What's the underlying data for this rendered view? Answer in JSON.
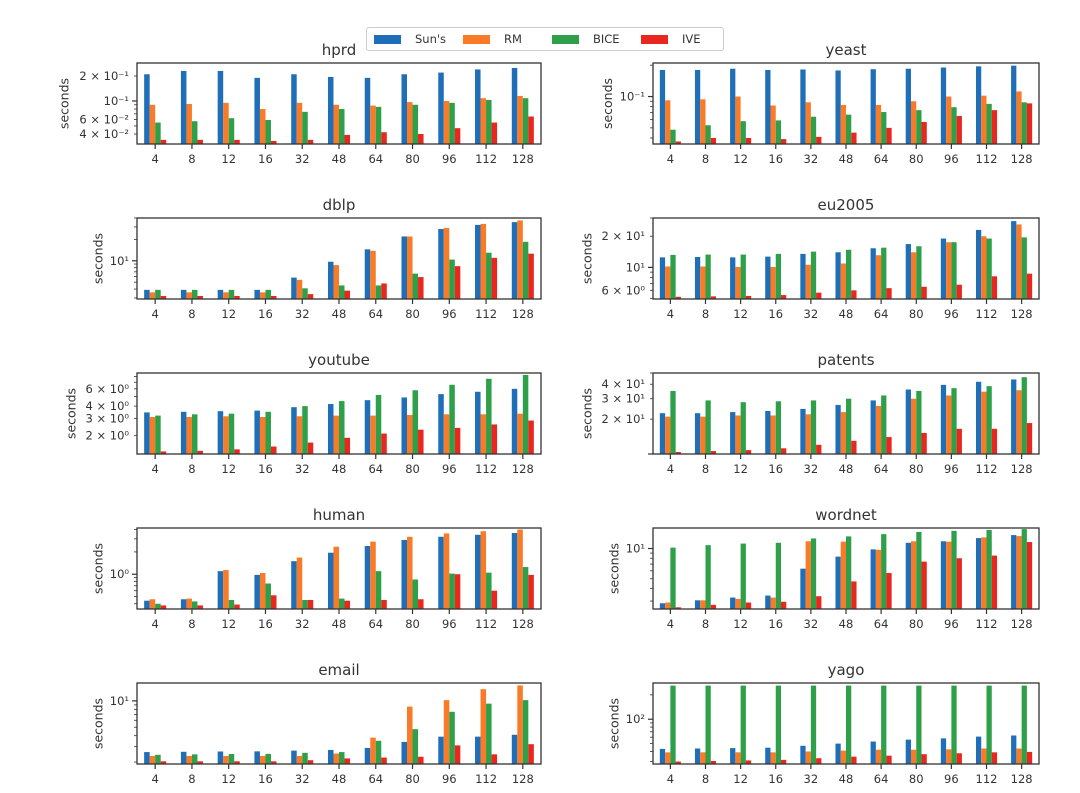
{
  "legend": [
    {
      "label": "Sun's",
      "color": "#1f6fb8"
    },
    {
      "label": "RM",
      "color": "#f97b28"
    },
    {
      "label": "BICE",
      "color": "#2ea04a"
    },
    {
      "label": "IVE",
      "color": "#e8281e"
    }
  ],
  "chart_data": [
    {
      "type": "bar",
      "title": "hprd",
      "xlabel": "",
      "ylabel": "seconds",
      "yscale": "log",
      "categories": [
        "4",
        "8",
        "12",
        "16",
        "32",
        "48",
        "64",
        "80",
        "96",
        "112",
        "128"
      ],
      "ylim": [
        0.0303,
        0.287
      ],
      "yticks": [
        {
          "v": 0.2,
          "label": "2 × 10⁻¹"
        },
        {
          "v": 0.1,
          "label": "10⁻¹"
        },
        {
          "v": 0.06,
          "label": "6 × 10⁻²"
        },
        {
          "v": 0.04,
          "label": "4 × 10⁻²"
        }
      ],
      "series": [
        {
          "name": "Sun's",
          "values": [
            0.21,
            0.23,
            0.23,
            0.19,
            0.21,
            0.195,
            0.19,
            0.21,
            0.22,
            0.24,
            0.25
          ]
        },
        {
          "name": "RM",
          "values": [
            0.09,
            0.092,
            0.095,
            0.08,
            0.095,
            0.09,
            0.088,
            0.097,
            0.1,
            0.108,
            0.115
          ]
        },
        {
          "name": "BICE",
          "values": [
            0.055,
            0.057,
            0.062,
            0.059,
            0.074,
            0.08,
            0.085,
            0.09,
            0.095,
            0.103,
            0.108
          ]
        },
        {
          "name": "IVE",
          "values": [
            0.034,
            0.034,
            0.034,
            0.033,
            0.034,
            0.039,
            0.042,
            0.04,
            0.047,
            0.055,
            0.065
          ]
        }
      ]
    },
    {
      "type": "bar",
      "title": "yeast",
      "xlabel": "",
      "ylabel": "seconds",
      "yscale": "log",
      "categories": [
        "4",
        "8",
        "12",
        "16",
        "32",
        "48",
        "64",
        "80",
        "96",
        "112",
        "128"
      ],
      "ylim": [
        0.035,
        0.21
      ],
      "yticks": [
        {
          "v": 0.1,
          "label": "10⁻¹"
        }
      ],
      "series": [
        {
          "name": "Sun's",
          "values": [
            0.18,
            0.18,
            0.185,
            0.18,
            0.182,
            0.178,
            0.183,
            0.185,
            0.19,
            0.195,
            0.198
          ]
        },
        {
          "name": "RM",
          "values": [
            0.092,
            0.094,
            0.1,
            0.082,
            0.088,
            0.083,
            0.083,
            0.09,
            0.1,
            0.102,
            0.112
          ]
        },
        {
          "name": "BICE",
          "values": [
            0.048,
            0.053,
            0.058,
            0.059,
            0.064,
            0.067,
            0.071,
            0.074,
            0.079,
            0.085,
            0.088
          ]
        },
        {
          "name": "IVE",
          "values": [
            0.037,
            0.04,
            0.04,
            0.039,
            0.041,
            0.045,
            0.05,
            0.057,
            0.065,
            0.074,
            0.086
          ]
        }
      ]
    },
    {
      "type": "bar",
      "title": "dblp",
      "xlabel": "",
      "ylabel": "seconds",
      "yscale": "log",
      "categories": [
        "4",
        "8",
        "12",
        "16",
        "32",
        "48",
        "64",
        "80",
        "96",
        "112",
        "128"
      ],
      "ylim": [
        2.9,
        40
      ],
      "yticks": [
        {
          "v": 10,
          "label": "10¹"
        }
      ],
      "series": [
        {
          "name": "Sun's",
          "values": [
            3.9,
            3.9,
            3.9,
            3.9,
            5.8,
            9.7,
            14.5,
            22,
            28,
            32,
            35
          ]
        },
        {
          "name": "RM",
          "values": [
            3.6,
            3.6,
            3.6,
            3.6,
            5.4,
            8.7,
            13.8,
            22,
            29,
            33,
            37
          ]
        },
        {
          "name": "BICE",
          "values": [
            3.9,
            3.9,
            3.9,
            3.9,
            4.1,
            4.5,
            4.5,
            6.6,
            10.4,
            13,
            18.5
          ]
        },
        {
          "name": "IVE",
          "values": [
            3.2,
            3.2,
            3.2,
            3.2,
            3.4,
            3.8,
            4.8,
            5.9,
            8.4,
            11,
            12.6
          ]
        }
      ]
    },
    {
      "type": "bar",
      "title": "eu2005",
      "xlabel": "",
      "ylabel": "seconds",
      "yscale": "log",
      "categories": [
        "4",
        "8",
        "12",
        "16",
        "32",
        "48",
        "64",
        "80",
        "96",
        "112",
        "128"
      ],
      "ylim": [
        4.95,
        30
      ],
      "yticks": [
        {
          "v": 20,
          "label": "2 × 10¹"
        },
        {
          "v": 10,
          "label": "10¹"
        },
        {
          "v": 6,
          "label": "6 × 10⁰"
        }
      ],
      "series": [
        {
          "name": "Sun's",
          "values": [
            12.5,
            12.6,
            12.5,
            12.7,
            13.5,
            14,
            15.3,
            16.8,
            19,
            23,
            28
          ]
        },
        {
          "name": "RM",
          "values": [
            10.2,
            10.2,
            10.1,
            10.1,
            10.6,
            10.9,
            13.1,
            14,
            17.5,
            20,
            26
          ]
        },
        {
          "name": "BICE",
          "values": [
            13.2,
            13.3,
            13.3,
            13.5,
            14.2,
            14.8,
            15.5,
            16,
            17.5,
            19,
            19.5
          ]
        },
        {
          "name": "IVE",
          "values": [
            5.2,
            5.25,
            5.3,
            5.4,
            5.7,
            6,
            6.3,
            6.5,
            6.8,
            8.2,
            8.7
          ]
        }
      ]
    },
    {
      "type": "bar",
      "title": "youtube",
      "xlabel": "",
      "ylabel": "seconds",
      "yscale": "log",
      "categories": [
        "4",
        "8",
        "12",
        "16",
        "32",
        "48",
        "64",
        "80",
        "96",
        "112",
        "128"
      ],
      "ylim": [
        1.3,
        8.7
      ],
      "yticks": [
        {
          "v": 6,
          "label": "6 × 10⁰"
        },
        {
          "v": 4,
          "label": "4 × 10⁰"
        },
        {
          "v": 3,
          "label": "3 × 10⁰"
        },
        {
          "v": 2,
          "label": "2 × 10⁰"
        }
      ],
      "series": [
        {
          "name": "Sun's",
          "values": [
            3.45,
            3.5,
            3.55,
            3.6,
            3.9,
            4.2,
            4.6,
            4.9,
            5.3,
            5.6,
            6.0
          ]
        },
        {
          "name": "RM",
          "values": [
            3.1,
            3.1,
            3.15,
            3.1,
            3.15,
            3.2,
            3.2,
            3.25,
            3.3,
            3.3,
            3.35
          ]
        },
        {
          "name": "BICE",
          "values": [
            3.2,
            3.3,
            3.35,
            3.5,
            4.0,
            4.5,
            5.2,
            5.8,
            6.6,
            7.6,
            8.3
          ]
        },
        {
          "name": "IVE",
          "values": [
            1.38,
            1.4,
            1.45,
            1.55,
            1.7,
            1.9,
            2.1,
            2.3,
            2.4,
            2.6,
            2.85
          ]
        }
      ]
    },
    {
      "type": "bar",
      "title": "patents",
      "xlabel": "",
      "ylabel": "seconds",
      "yscale": "log",
      "categories": [
        "4",
        "8",
        "12",
        "16",
        "32",
        "48",
        "64",
        "80",
        "96",
        "112",
        "128"
      ],
      "ylim": [
        10,
        50
      ],
      "yticks": [
        {
          "v": 40,
          "label": "4 × 10¹"
        },
        {
          "v": 30,
          "label": "3 × 10¹"
        },
        {
          "v": 20,
          "label": "2 × 10¹"
        }
      ],
      "series": [
        {
          "name": "Sun's",
          "values": [
            22.5,
            22.5,
            23,
            23.5,
            24.5,
            26.5,
            29,
            36,
            39.5,
            42,
            44
          ]
        },
        {
          "name": "RM",
          "values": [
            21,
            21,
            21.5,
            21.5,
            22,
            23,
            26,
            30,
            32,
            34.5,
            35.5
          ]
        },
        {
          "name": "BICE",
          "values": [
            35,
            29,
            28,
            28.5,
            29,
            30,
            32,
            35,
            37,
            38.5,
            46
          ]
        },
        {
          "name": "IVE",
          "values": [
            10.4,
            10.6,
            10.8,
            11.2,
            12,
            13,
            14,
            15.2,
            16.5,
            16.5,
            18.5
          ]
        }
      ]
    },
    {
      "type": "bar",
      "title": "human",
      "xlabel": "",
      "ylabel": "seconds",
      "yscale": "log",
      "categories": [
        "4",
        "8",
        "12",
        "16",
        "32",
        "48",
        "64",
        "80",
        "96",
        "112",
        "128"
      ],
      "ylim": [
        0.34,
        4.2
      ],
      "yticks": [
        {
          "v": 1,
          "label": "10⁰"
        }
      ],
      "series": [
        {
          "name": "Sun's",
          "values": [
            0.44,
            0.46,
            1.1,
            0.98,
            1.5,
            1.95,
            2.4,
            2.9,
            3.2,
            3.4,
            3.6
          ]
        },
        {
          "name": "RM",
          "values": [
            0.46,
            0.47,
            1.14,
            1.04,
            1.68,
            2.35,
            2.75,
            3.2,
            3.55,
            3.8,
            4.0
          ]
        },
        {
          "name": "BICE",
          "values": [
            0.4,
            0.43,
            0.45,
            0.75,
            0.45,
            0.47,
            1.1,
            0.85,
            1.02,
            1.05,
            1.25
          ]
        },
        {
          "name": "IVE",
          "values": [
            0.38,
            0.38,
            0.39,
            0.52,
            0.45,
            0.44,
            0.45,
            0.46,
            1.0,
            0.6,
            0.98
          ]
        }
      ]
    },
    {
      "type": "bar",
      "title": "wordnet",
      "xlabel": "",
      "ylabel": "seconds",
      "yscale": "log",
      "categories": [
        "4",
        "8",
        "12",
        "16",
        "32",
        "48",
        "64",
        "80",
        "96",
        "112",
        "128"
      ],
      "ylim": [
        2.5,
        16
      ],
      "yticks": [
        {
          "v": 10,
          "label": "10¹"
        }
      ],
      "series": [
        {
          "name": "Sun's",
          "values": [
            2.85,
            3.05,
            3.25,
            3.4,
            6.3,
            8.3,
            9.8,
            11.4,
            11.8,
            12.7,
            13.6
          ]
        },
        {
          "name": "RM",
          "values": [
            2.9,
            3.05,
            3.15,
            3.25,
            11.8,
            11.7,
            9.7,
            11.8,
            11.7,
            12.9,
            13.3
          ]
        },
        {
          "name": "BICE",
          "values": [
            10.2,
            10.8,
            11.2,
            11.4,
            12.6,
            13.2,
            13.9,
            14.6,
            15.0,
            15.3,
            15.6
          ]
        },
        {
          "name": "IVE",
          "values": [
            2.6,
            2.75,
            2.9,
            2.95,
            3.35,
            4.7,
            5.7,
            7.4,
            8.0,
            8.5,
            11.6
          ]
        }
      ]
    },
    {
      "type": "bar",
      "title": "email",
      "xlabel": "",
      "ylabel": "seconds",
      "yscale": "log",
      "categories": [
        "4",
        "8",
        "12",
        "16",
        "32",
        "48",
        "64",
        "80",
        "96",
        "112",
        "128"
      ],
      "ylim": [
        1.9,
        16
      ],
      "yticks": [
        {
          "v": 10,
          "label": "10¹"
        }
      ],
      "series": [
        {
          "name": "Sun's",
          "values": [
            2.6,
            2.62,
            2.64,
            2.65,
            2.7,
            2.75,
            2.9,
            3.4,
            3.9,
            3.9,
            4.1
          ]
        },
        {
          "name": "RM",
          "values": [
            2.35,
            2.35,
            2.35,
            2.35,
            2.35,
            2.5,
            3.8,
            8.6,
            10.2,
            13.6,
            15.0
          ]
        },
        {
          "name": "BICE",
          "values": [
            2.42,
            2.45,
            2.47,
            2.48,
            2.55,
            2.6,
            3.5,
            4.75,
            7.5,
            9.3,
            10.2
          ]
        },
        {
          "name": "IVE",
          "values": [
            2.04,
            2.04,
            2.04,
            2.04,
            2.1,
            2.2,
            2.25,
            2.3,
            3.1,
            2.45,
            3.2
          ]
        }
      ]
    },
    {
      "type": "bar",
      "title": "yago",
      "xlabel": "",
      "ylabel": "seconds",
      "yscale": "log",
      "categories": [
        "4",
        "8",
        "12",
        "16",
        "32",
        "48",
        "64",
        "80",
        "96",
        "112",
        "128"
      ],
      "ylim": [
        28,
        280
      ],
      "yticks": [
        {
          "v": 100,
          "label": "10²"
        }
      ],
      "series": [
        {
          "name": "Sun's",
          "values": [
            43,
            43.5,
            44,
            44.5,
            47,
            50,
            53,
            56,
            58,
            61,
            63
          ]
        },
        {
          "name": "RM",
          "values": [
            39,
            39,
            39,
            39,
            40,
            41,
            42,
            42,
            42.5,
            43.5,
            43.5
          ]
        },
        {
          "name": "BICE",
          "values": [
            260,
            260,
            260,
            260,
            260,
            260,
            260,
            260,
            260,
            260,
            260
          ]
        },
        {
          "name": "IVE",
          "values": [
            30,
            30.5,
            31,
            31.5,
            33,
            34.5,
            35.5,
            37,
            38,
            39,
            39.5
          ]
        }
      ]
    }
  ]
}
